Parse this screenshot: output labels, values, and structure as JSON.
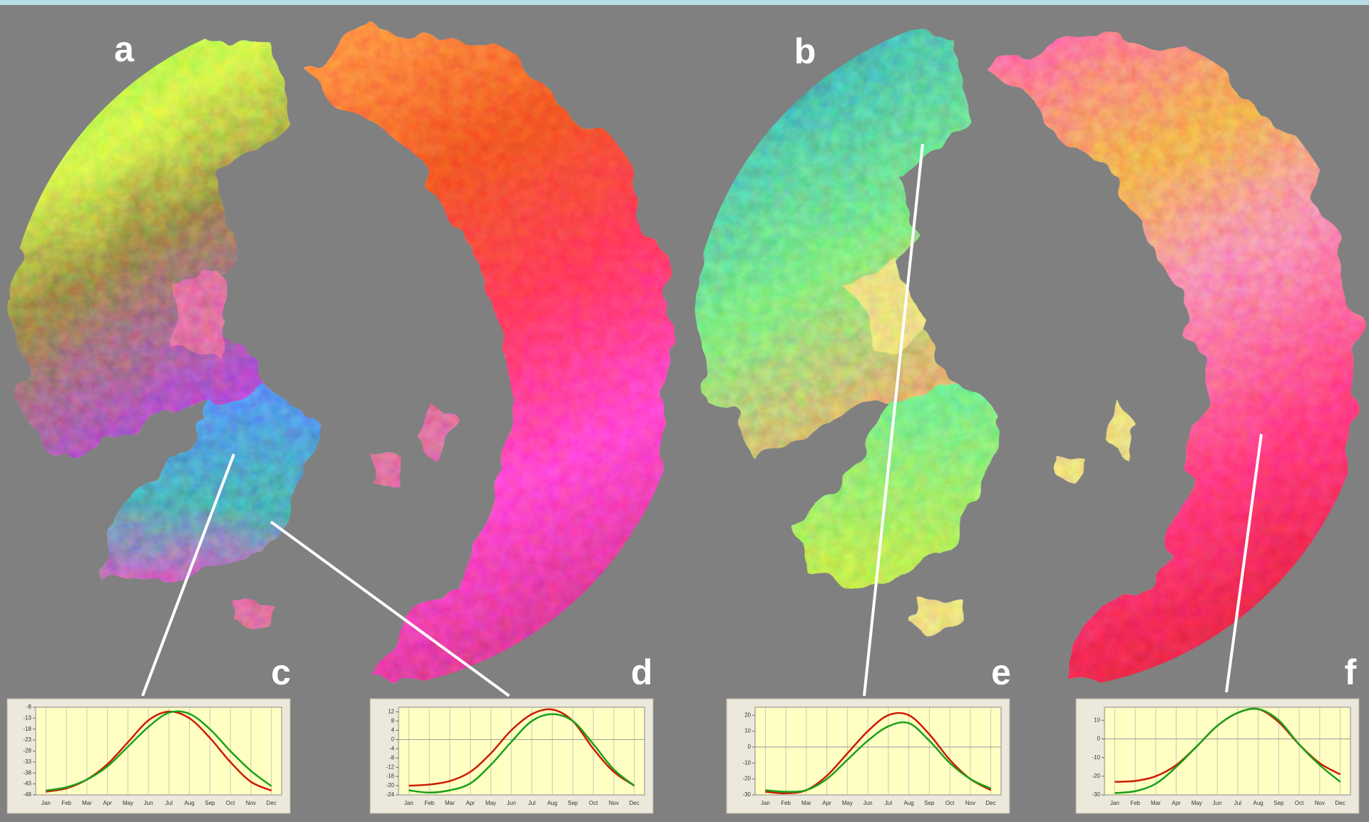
{
  "labels": [
    "a",
    "b"
  ],
  "chart_data": [
    {
      "type": "line",
      "label": "c",
      "categories": [
        "Jan",
        "Feb",
        "Mar",
        "Apr",
        "May",
        "Jun",
        "Jul",
        "Aug",
        "Sep",
        "Oct",
        "Nov",
        "Dec"
      ],
      "series": [
        {
          "color": "#cc1a00",
          "values": [
            -46.5,
            -45,
            -41,
            -34,
            -24,
            -14,
            -10,
            -13,
            -22,
            -33,
            -42,
            -46
          ]
        },
        {
          "color": "#1aa01a",
          "values": [
            -46,
            -44.5,
            -41,
            -35,
            -26,
            -17,
            -10.5,
            -11,
            -18,
            -28,
            -37,
            -44
          ]
        }
      ],
      "ylim": [
        -48,
        -8
      ],
      "yticks": [
        -8,
        -13,
        -18,
        -23,
        -28,
        -33,
        -38,
        -43,
        -48
      ],
      "grid": true
    },
    {
      "type": "line",
      "label": "d",
      "categories": [
        "Jan",
        "Feb",
        "Mar",
        "Apr",
        "May",
        "Jun",
        "Jul",
        "Aug",
        "Sep",
        "Oct",
        "Nov",
        "Dec"
      ],
      "series": [
        {
          "color": "#cc1a00",
          "values": [
            -20,
            -19.5,
            -18,
            -14,
            -6,
            4,
            11,
            13,
            8,
            -4,
            -14,
            -20
          ]
        },
        {
          "color": "#1aa01a",
          "values": [
            -22,
            -23,
            -22,
            -19,
            -11,
            -1,
            8,
            11,
            8,
            -2,
            -13,
            -20
          ]
        }
      ],
      "ylim": [
        -24,
        14
      ],
      "yticks": [
        12,
        8,
        4,
        0,
        -4,
        -8,
        -12,
        -16,
        -20,
        -24
      ],
      "grid": true
    },
    {
      "type": "line",
      "label": "e",
      "categories": [
        "Jan",
        "Feb",
        "Mar",
        "Apr",
        "May",
        "Jun",
        "Jul",
        "Aug",
        "Sep",
        "Oct",
        "Nov",
        "Dec"
      ],
      "series": [
        {
          "color": "#cc1a00",
          "values": [
            -28,
            -29,
            -27,
            -18,
            -4,
            10,
            20,
            20,
            8,
            -8,
            -20,
            -27
          ]
        },
        {
          "color": "#1aa01a",
          "values": [
            -27,
            -28,
            -27,
            -20,
            -8,
            4,
            13,
            15,
            4,
            -10,
            -20,
            -26
          ]
        }
      ],
      "ylim": [
        -30,
        25
      ],
      "yticks": [
        20,
        10,
        0,
        -10,
        -20,
        -30
      ],
      "grid": true
    },
    {
      "type": "line",
      "label": "f",
      "categories": [
        "Jan",
        "Feb",
        "Mar",
        "Apr",
        "May",
        "Jun",
        "Jul",
        "Aug",
        "Sep",
        "Oct",
        "Nov",
        "Dec"
      ],
      "series": [
        {
          "color": "#cc1a00",
          "values": [
            -23,
            -22.5,
            -20,
            -14,
            -4,
            7,
            14,
            16,
            9,
            -3,
            -13,
            -19
          ]
        },
        {
          "color": "#1aa01a",
          "values": [
            -29,
            -28,
            -24,
            -15,
            -4,
            7,
            14,
            16,
            10,
            -3,
            -14,
            -23
          ]
        }
      ],
      "ylim": [
        -30,
        17
      ],
      "yticks": [
        10,
        0,
        -10,
        -20,
        -30
      ],
      "grid": true
    }
  ]
}
